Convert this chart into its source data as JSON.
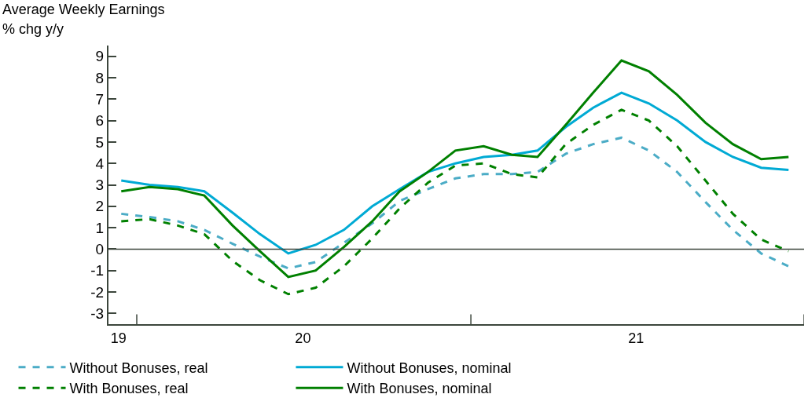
{
  "chart_data": {
    "type": "line",
    "title": "Average Weekly Earnings",
    "ylabel": "% chg y/y",
    "x": [
      "2019-12-15",
      "2020-01-15",
      "2020-02-15",
      "2020-03-15",
      "2020-04-15",
      "2020-05-15",
      "2020-06-15",
      "2020-07-15",
      "2020-08-15",
      "2020-09-15",
      "2020-10-15",
      "2020-11-15",
      "2020-12-15",
      "2021-01-15",
      "2021-02-15",
      "2021-03-15",
      "2021-04-15",
      "2021-05-15",
      "2021-06-15",
      "2021-07-15",
      "2021-08-15",
      "2021-09-15",
      "2021-10-15",
      "2021-11-15",
      "2021-12-15"
    ],
    "series": [
      {
        "name": "Without Bonuses, real",
        "color": "#4bacc6",
        "line_style": "dashed",
        "values": [
          1.65,
          1.5,
          1.3,
          0.9,
          0.25,
          -0.35,
          -0.9,
          -0.6,
          0.3,
          1.2,
          2.25,
          2.8,
          3.3,
          3.5,
          3.5,
          3.6,
          4.45,
          4.9,
          5.2,
          4.6,
          3.6,
          2.2,
          0.9,
          -0.2,
          -0.8
        ]
      },
      {
        "name": "Without Bonuses, nominal",
        "color": "#00aad4",
        "line_style": "solid",
        "values": [
          3.2,
          3.0,
          2.9,
          2.7,
          1.7,
          0.7,
          -0.2,
          0.2,
          0.9,
          2.0,
          2.8,
          3.6,
          4.0,
          4.3,
          4.4,
          4.6,
          5.7,
          6.6,
          7.3,
          6.8,
          6.0,
          5.0,
          4.3,
          3.8,
          3.7
        ]
      },
      {
        "name": "With Bonuses, real",
        "color": "#008000",
        "line_style": "dashed",
        "values": [
          1.3,
          1.4,
          1.1,
          0.7,
          -0.55,
          -1.45,
          -2.1,
          -1.8,
          -0.8,
          0.5,
          1.9,
          3.1,
          3.9,
          4.0,
          3.5,
          3.35,
          4.9,
          5.8,
          6.5,
          6.0,
          4.8,
          3.2,
          1.65,
          0.45,
          -0.1
        ]
      },
      {
        "name": "With Bonuses, nominal",
        "color": "#008000",
        "line_style": "solid",
        "values": [
          2.7,
          2.9,
          2.8,
          2.5,
          1.1,
          -0.1,
          -1.3,
          -1.0,
          0.1,
          1.3,
          2.7,
          3.6,
          4.6,
          4.8,
          4.4,
          4.3,
          5.8,
          7.3,
          8.8,
          8.3,
          7.2,
          5.9,
          4.9,
          4.2,
          4.3
        ]
      }
    ],
    "xlim": [
      "2019-12-01",
      "2022-01-01"
    ],
    "xticks": [
      {
        "value": "2019-12-12",
        "label": "19"
      },
      {
        "value": "2020-01-01",
        "label": null
      },
      {
        "value": "2020-07-01",
        "label": "20"
      },
      {
        "value": "2021-01-01",
        "label": null
      },
      {
        "value": "2021-07-01",
        "label": "21"
      },
      {
        "value": "2022-01-01",
        "label": null
      }
    ],
    "ylim": [
      -3.5,
      9.5
    ],
    "yticks": [
      -3,
      -2,
      -1,
      0,
      1,
      2,
      3,
      4,
      5,
      6,
      7,
      8,
      9
    ],
    "ref_lines": [
      {
        "axis": "y",
        "value": 0,
        "color": "#3c463c"
      }
    ],
    "legend": "bottom"
  }
}
